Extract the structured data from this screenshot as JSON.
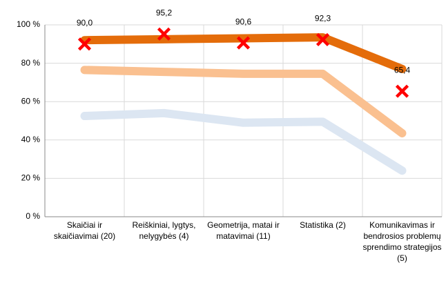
{
  "chart_data": {
    "type": "line",
    "categories": [
      "Skaičiai ir skaičiavimai (20)",
      "Reiškiniai, lygtys, nelygybės (4)",
      "Geometrija, matai ir matavimai (11)",
      "Statistika (2)",
      "Komunikavimas ir bendrosios problemų sprendimo strategijos (5)"
    ],
    "series": [
      {
        "color": "#fac090",
        "style": "line",
        "values": [
          76.5,
          75.5,
          74.5,
          74.5,
          43.5
        ]
      },
      {
        "color": "#dce6f2",
        "style": "line",
        "values": [
          52.5,
          54,
          49,
          49.5,
          24
        ]
      },
      {
        "color": "#e46c0a",
        "style": "line",
        "values": [
          92,
          92.5,
          93,
          93.5,
          77
        ]
      },
      {
        "color": "#ff0000",
        "style": "marker",
        "values": [
          90.0,
          95.2,
          90.6,
          92.3,
          65.4
        ],
        "value_labels": [
          "90,0",
          "95,2",
          "90,6",
          "92,3",
          "65,4"
        ]
      }
    ],
    "ylim": [
      0,
      100
    ],
    "yticks": [
      {
        "value": 0,
        "label": "0 %"
      },
      {
        "value": 20,
        "label": "20 %"
      },
      {
        "value": 40,
        "label": "40 %"
      },
      {
        "value": 60,
        "label": "60 %"
      },
      {
        "value": 80,
        "label": "80 %"
      },
      {
        "value": 100,
        "label": "100 %"
      }
    ],
    "grid": true
  }
}
